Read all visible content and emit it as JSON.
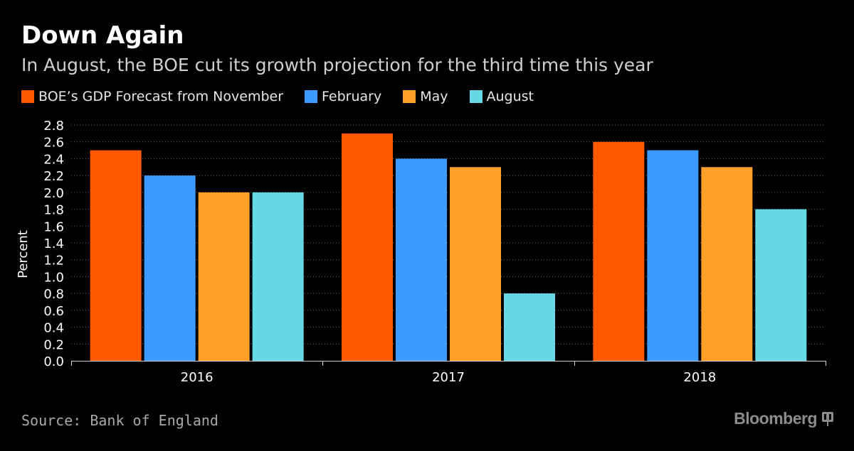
{
  "title": "Down Again",
  "subtitle": "In August, the BOE cut its growth projection for the third time this year",
  "source": "Source: Bank of England",
  "brand": "Bloomberg",
  "brand_icon": "bloomberg-terminal-icon",
  "colors": {
    "background": "#000000",
    "grid": "#6a6a6a",
    "axis_text": "#ffffff",
    "november": "#ff5a00",
    "february": "#3d9bff",
    "may": "#ffa028",
    "august": "#66d9e6"
  },
  "chart_data": {
    "type": "bar",
    "title": "Down Again",
    "subtitle": "In August, the BOE cut its growth projection for the third time this year",
    "xlabel": "",
    "ylabel": "Percent",
    "categories": [
      "2016",
      "2017",
      "2018"
    ],
    "ylim": [
      0,
      2.8
    ],
    "yticks": [
      "0.0",
      "0.2",
      "0.4",
      "0.6",
      "0.8",
      "1.0",
      "1.2",
      "1.4",
      "1.6",
      "1.8",
      "2.0",
      "2.2",
      "2.4",
      "2.6",
      "2.8"
    ],
    "grid": true,
    "legend_position": "top-left",
    "series": [
      {
        "name": "BOE’s GDP Forecast from November",
        "color": "#ff5a00",
        "values": [
          2.5,
          2.7,
          2.6
        ]
      },
      {
        "name": "February",
        "color": "#3d9bff",
        "values": [
          2.2,
          2.4,
          2.5
        ]
      },
      {
        "name": "May",
        "color": "#ffa028",
        "values": [
          2.0,
          2.3,
          2.3
        ]
      },
      {
        "name": "August",
        "color": "#66d9e6",
        "values": [
          2.0,
          0.8,
          1.8
        ]
      }
    ]
  }
}
